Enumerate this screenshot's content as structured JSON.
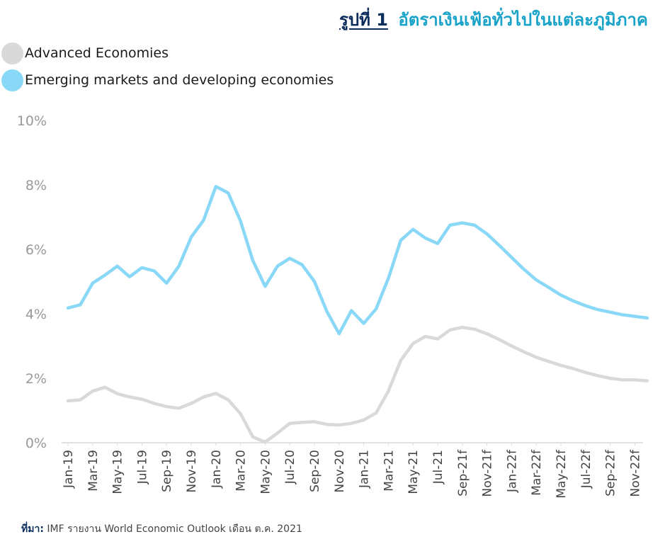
{
  "title": {
    "number": "รูปที่ 1",
    "text": "อัตราเงินเฟ้อทั่วไปในแต่ละภูมิภาค"
  },
  "source": {
    "label": "ที่มา:",
    "text": "IMF รายงาน World Economic Outlook  เดือน ต.ค. 2021"
  },
  "colors": {
    "advanced": "#d9d9d9",
    "emerging": "#8ad8f7",
    "axis_text": "#999999",
    "title_accent": "#1aa3c8",
    "title_dark": "#0b2d5c"
  },
  "chart_data": {
    "type": "line",
    "ylim": [
      0,
      10
    ],
    "yticks": [
      "0%",
      "2%",
      "4%",
      "6%",
      "8%",
      "10%"
    ],
    "grid": false,
    "legend_position": "top-left",
    "x": [
      "Jan-19",
      "Feb-19",
      "Mar-19",
      "Apr-19",
      "May-19",
      "Jun-19",
      "Jul-19",
      "Aug-19",
      "Sep-19",
      "Oct-19",
      "Nov-19",
      "Dec-19",
      "Jan-20",
      "Feb-20",
      "Mar-20",
      "Apr-20",
      "May-20",
      "Jun-20",
      "Jul-20",
      "Aug-20",
      "Sep-20",
      "Oct-20",
      "Nov-20",
      "Dec-20",
      "Jan-21",
      "Feb-21",
      "Mar-21",
      "Apr-21",
      "May-21",
      "Jun-21",
      "Jul-21",
      "Aug-21",
      "Sep-21f",
      "Oct-21f",
      "Nov-21f",
      "Dec-21f",
      "Jan-22f",
      "Feb-22f",
      "Mar-22f",
      "Apr-22f",
      "May-22f",
      "Jun-22f",
      "Jul-22f",
      "Aug-22f",
      "Sep-22f",
      "Oct-22f",
      "Nov-22f",
      "Dec-22f"
    ],
    "tick_labels": [
      "Jan-19",
      "Mar-19",
      "May-19",
      "Jul-19",
      "Sep-19",
      "Nov-19",
      "Jan-20",
      "Mar-20",
      "May-20",
      "Jul-20",
      "Sep-20",
      "Nov-20",
      "Jan-21",
      "Mar-21",
      "May-21",
      "Jul-21",
      "Sep-21f",
      "Nov-21f",
      "Jan-22f",
      "Mar-22f",
      "May-22f",
      "Jul-22f",
      "Sep-22f",
      "Nov-22f"
    ],
    "series": [
      {
        "name": "Advanced Economies",
        "color": "#d9d9d9",
        "values": [
          1.3,
          1.33,
          1.6,
          1.72,
          1.52,
          1.42,
          1.35,
          1.22,
          1.12,
          1.07,
          1.22,
          1.42,
          1.53,
          1.33,
          0.9,
          0.18,
          0.02,
          0.3,
          0.6,
          0.63,
          0.65,
          0.57,
          0.55,
          0.6,
          0.7,
          0.92,
          1.6,
          2.55,
          3.08,
          3.3,
          3.22,
          3.5,
          3.58,
          3.52,
          3.38,
          3.2,
          3.0,
          2.82,
          2.65,
          2.52,
          2.4,
          2.3,
          2.18,
          2.08,
          2.0,
          1.95,
          1.95,
          1.92
        ]
      },
      {
        "name": "Emerging markets and developing economies",
        "color": "#8ad8f7",
        "values": [
          4.18,
          4.28,
          4.95,
          5.2,
          5.48,
          5.15,
          5.43,
          5.33,
          4.95,
          5.48,
          6.38,
          6.9,
          7.95,
          7.75,
          6.88,
          5.65,
          4.85,
          5.48,
          5.72,
          5.52,
          5.0,
          4.08,
          3.38,
          4.1,
          3.7,
          4.15,
          5.1,
          6.28,
          6.62,
          6.35,
          6.18,
          6.75,
          6.82,
          6.75,
          6.48,
          6.12,
          5.75,
          5.38,
          5.05,
          4.82,
          4.58,
          4.4,
          4.25,
          4.13,
          4.05,
          3.97,
          3.92,
          3.87
        ]
      }
    ]
  }
}
